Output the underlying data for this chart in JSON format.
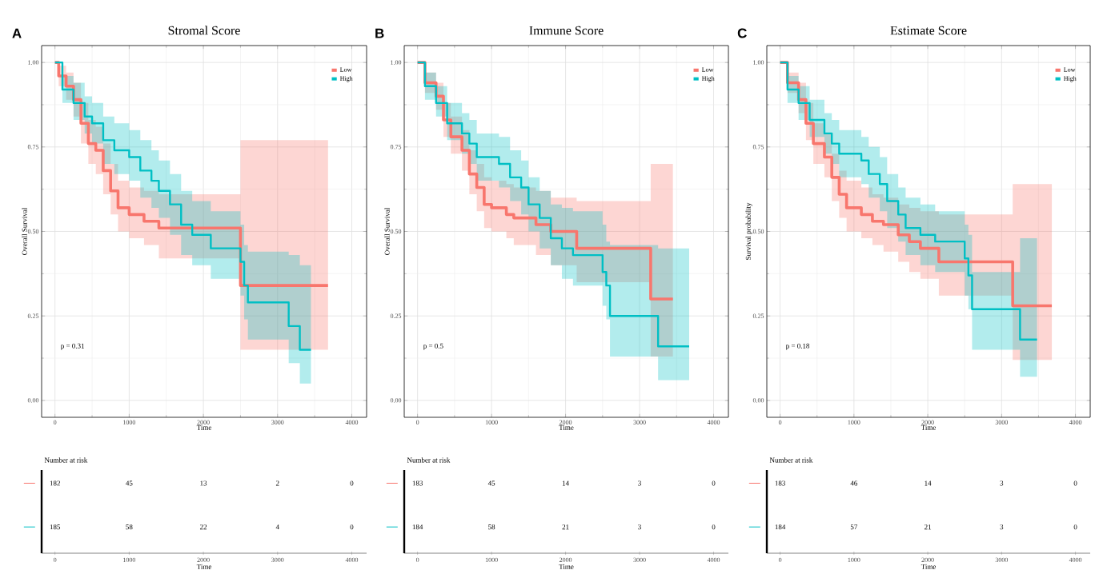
{
  "chart_data": [
    {
      "type": "step",
      "title": "Stromal Score",
      "xlabel": "Time",
      "ylabel": "Overall Survival",
      "annotations": [
        "A",
        "p = 0.31"
      ],
      "grid": true,
      "legend": "top right",
      "marker": "none",
      "line_style": "solid",
      "xlim": [
        -180,
        4200
      ],
      "ylim": [
        -0.05,
        1.05
      ],
      "xticks": [
        0,
        1000,
        2000,
        3000,
        4000
      ],
      "yticks": [
        {
          "value": 0,
          "label": "0.00"
        },
        {
          "value": 0.25,
          "label": "0.25"
        },
        {
          "value": 0.5,
          "label": "0.50"
        },
        {
          "value": 0.75,
          "label": "0.75"
        },
        {
          "value": 1,
          "label": "1.00"
        }
      ],
      "series": [
        {
          "name": "Low",
          "color": "#F8766D",
          "x": [
            0,
            50,
            150,
            250,
            350,
            450,
            550,
            650,
            750,
            850,
            1000,
            1200,
            1400,
            2500,
            3680
          ],
          "values": [
            1,
            0.96,
            0.93,
            0.89,
            0.82,
            0.76,
            0.74,
            0.68,
            0.62,
            0.57,
            0.55,
            0.53,
            0.51,
            0.34,
            0.34
          ],
          "lower": [
            1,
            0.93,
            0.89,
            0.84,
            0.76,
            0.7,
            0.67,
            0.61,
            0.55,
            0.5,
            0.48,
            0.46,
            0.42,
            0.15,
            0.15
          ],
          "upper": [
            1,
            0.99,
            0.97,
            0.94,
            0.88,
            0.83,
            0.81,
            0.76,
            0.7,
            0.65,
            0.63,
            0.62,
            0.61,
            0.77,
            0.77
          ]
        },
        {
          "name": "High",
          "color": "#00BFC4",
          "x": [
            0,
            100,
            250,
            400,
            500,
            650,
            800,
            1000,
            1150,
            1300,
            1400,
            1550,
            1700,
            1850,
            2100,
            2500,
            2550,
            2600,
            3150,
            3300,
            3450
          ],
          "values": [
            1,
            0.92,
            0.88,
            0.84,
            0.82,
            0.77,
            0.74,
            0.72,
            0.68,
            0.65,
            0.62,
            0.58,
            0.52,
            0.49,
            0.45,
            0.41,
            0.34,
            0.29,
            0.22,
            0.15,
            0.15
          ],
          "lower": [
            1,
            0.88,
            0.83,
            0.79,
            0.76,
            0.7,
            0.67,
            0.65,
            0.6,
            0.57,
            0.54,
            0.49,
            0.43,
            0.4,
            0.36,
            0.31,
            0.24,
            0.18,
            0.11,
            0.05,
            0.05
          ],
          "upper": [
            1,
            0.96,
            0.94,
            0.9,
            0.88,
            0.84,
            0.82,
            0.8,
            0.77,
            0.74,
            0.71,
            0.67,
            0.62,
            0.59,
            0.56,
            0.52,
            0.46,
            0.44,
            0.43,
            0.4,
            0.4
          ]
        }
      ]
    },
    {
      "type": "step",
      "title": "Immune Score",
      "xlabel": "Time",
      "ylabel": "Overall Survival",
      "annotations": [
        "B",
        "p = 0.5"
      ],
      "grid": true,
      "legend": "top right",
      "marker": "none",
      "line_style": "solid",
      "xlim": [
        -180,
        4200
      ],
      "ylim": [
        -0.05,
        1.05
      ],
      "xticks": [
        0,
        1000,
        2000,
        3000,
        4000
      ],
      "yticks": [
        {
          "value": 0,
          "label": "0.00"
        },
        {
          "value": 0.25,
          "label": "0.25"
        },
        {
          "value": 0.5,
          "label": "0.50"
        },
        {
          "value": 0.75,
          "label": "0.75"
        },
        {
          "value": 1,
          "label": "1.00"
        }
      ],
      "series": [
        {
          "name": "Low",
          "color": "#F8766D",
          "x": [
            0,
            100,
            250,
            350,
            450,
            600,
            700,
            800,
            900,
            1000,
            1200,
            1300,
            1600,
            1800,
            2150,
            3150,
            3450
          ],
          "values": [
            1,
            0.94,
            0.9,
            0.83,
            0.78,
            0.74,
            0.67,
            0.63,
            0.58,
            0.57,
            0.55,
            0.54,
            0.52,
            0.5,
            0.45,
            0.3,
            0.3
          ],
          "lower": [
            1,
            0.91,
            0.86,
            0.78,
            0.73,
            0.68,
            0.61,
            0.56,
            0.51,
            0.5,
            0.48,
            0.46,
            0.43,
            0.4,
            0.35,
            0.13,
            0.13
          ],
          "upper": [
            1,
            0.97,
            0.94,
            0.88,
            0.84,
            0.8,
            0.74,
            0.7,
            0.66,
            0.65,
            0.64,
            0.63,
            0.62,
            0.6,
            0.59,
            0.7,
            0.7
          ]
        },
        {
          "name": "High",
          "color": "#00BFC4",
          "x": [
            0,
            100,
            250,
            400,
            600,
            700,
            800,
            1100,
            1250,
            1400,
            1500,
            1650,
            1800,
            1950,
            2100,
            2500,
            2550,
            2600,
            3250,
            3670
          ],
          "values": [
            1,
            0.93,
            0.88,
            0.82,
            0.79,
            0.76,
            0.72,
            0.7,
            0.66,
            0.63,
            0.58,
            0.54,
            0.48,
            0.45,
            0.43,
            0.38,
            0.34,
            0.25,
            0.16,
            0.16
          ],
          "lower": [
            1,
            0.89,
            0.84,
            0.77,
            0.73,
            0.7,
            0.65,
            0.63,
            0.59,
            0.55,
            0.5,
            0.45,
            0.4,
            0.36,
            0.34,
            0.28,
            0.24,
            0.13,
            0.06,
            0.06
          ],
          "upper": [
            1,
            0.97,
            0.93,
            0.88,
            0.85,
            0.83,
            0.79,
            0.78,
            0.74,
            0.71,
            0.66,
            0.62,
            0.58,
            0.57,
            0.56,
            0.52,
            0.47,
            0.46,
            0.45,
            0.45
          ]
        }
      ]
    },
    {
      "type": "step",
      "title": "Estimate Score",
      "xlabel": "Time",
      "ylabel": "Survival probability",
      "annotations": [
        "C",
        "p = 0.18"
      ],
      "grid": true,
      "legend": "top right",
      "marker": "none",
      "line_style": "solid",
      "xlim": [
        -180,
        4200
      ],
      "ylim": [
        -0.05,
        1.05
      ],
      "xticks": [
        0,
        1000,
        2000,
        3000,
        4000
      ],
      "yticks": [
        {
          "value": 0,
          "label": "0.00"
        },
        {
          "value": 0.25,
          "label": "0.25"
        },
        {
          "value": 0.5,
          "label": "0.50"
        },
        {
          "value": 0.75,
          "label": "0.75"
        },
        {
          "value": 1,
          "label": "1.00"
        }
      ],
      "series": [
        {
          "name": "Low",
          "color": "#F8766D",
          "x": [
            0,
            100,
            250,
            350,
            450,
            600,
            700,
            800,
            900,
            1100,
            1250,
            1400,
            1600,
            1750,
            1900,
            2150,
            3150,
            3680
          ],
          "values": [
            1,
            0.94,
            0.89,
            0.82,
            0.76,
            0.72,
            0.66,
            0.61,
            0.57,
            0.55,
            0.53,
            0.52,
            0.49,
            0.47,
            0.45,
            0.41,
            0.28,
            0.28
          ],
          "lower": [
            1,
            0.91,
            0.85,
            0.77,
            0.7,
            0.66,
            0.59,
            0.54,
            0.5,
            0.48,
            0.46,
            0.44,
            0.41,
            0.38,
            0.36,
            0.31,
            0.12,
            0.12
          ],
          "upper": [
            1,
            0.97,
            0.94,
            0.88,
            0.82,
            0.79,
            0.73,
            0.68,
            0.65,
            0.63,
            0.61,
            0.6,
            0.58,
            0.57,
            0.56,
            0.55,
            0.64,
            0.64
          ]
        },
        {
          "name": "High",
          "color": "#00BFC4",
          "x": [
            0,
            100,
            250,
            400,
            600,
            700,
            800,
            1100,
            1200,
            1350,
            1450,
            1600,
            1700,
            1900,
            2100,
            2500,
            2550,
            2600,
            3250,
            3480
          ],
          "values": [
            1,
            0.92,
            0.88,
            0.83,
            0.79,
            0.76,
            0.73,
            0.71,
            0.67,
            0.64,
            0.59,
            0.55,
            0.51,
            0.49,
            0.47,
            0.42,
            0.37,
            0.27,
            0.18,
            0.18
          ],
          "lower": [
            1,
            0.88,
            0.83,
            0.78,
            0.73,
            0.7,
            0.66,
            0.64,
            0.6,
            0.56,
            0.51,
            0.47,
            0.43,
            0.4,
            0.38,
            0.31,
            0.27,
            0.15,
            0.07,
            0.07
          ],
          "upper": [
            1,
            0.96,
            0.93,
            0.89,
            0.85,
            0.83,
            0.8,
            0.78,
            0.75,
            0.72,
            0.67,
            0.63,
            0.6,
            0.58,
            0.56,
            0.52,
            0.49,
            0.38,
            0.48,
            0.48
          ]
        }
      ]
    },
    {
      "type": "heatmap",
      "title": "Number at risk",
      "xlabel": "Time",
      "data_labels": true,
      "categories": [
        "0",
        "1000",
        "2000",
        "3000",
        "4000"
      ],
      "y_categories": [
        null,
        null
      ],
      "colors": [
        "#F8766D",
        "#00BFC4"
      ],
      "cells": [
        [
          182,
          45,
          13,
          2,
          0
        ],
        [
          185,
          58,
          22,
          4,
          0
        ]
      ]
    },
    {
      "type": "heatmap",
      "title": "Number at risk",
      "xlabel": "Time",
      "data_labels": true,
      "categories": [
        "0",
        "1000",
        "2000",
        "3000",
        "4000"
      ],
      "y_categories": [
        null,
        null
      ],
      "colors": [
        "#F8766D",
        "#00BFC4"
      ],
      "cells": [
        [
          183,
          45,
          14,
          3,
          0
        ],
        [
          184,
          58,
          21,
          3,
          0
        ]
      ]
    },
    {
      "type": "heatmap",
      "title": "Number at risk",
      "xlabel": "Time",
      "data_labels": true,
      "categories": [
        "0",
        "1000",
        "2000",
        "3000",
        "4000"
      ],
      "y_categories": [
        null,
        null
      ],
      "colors": [
        "#F8766D",
        "#00BFC4"
      ],
      "cells": [
        [
          183,
          46,
          14,
          3,
          0
        ],
        [
          184,
          57,
          21,
          3,
          0
        ]
      ]
    }
  ]
}
